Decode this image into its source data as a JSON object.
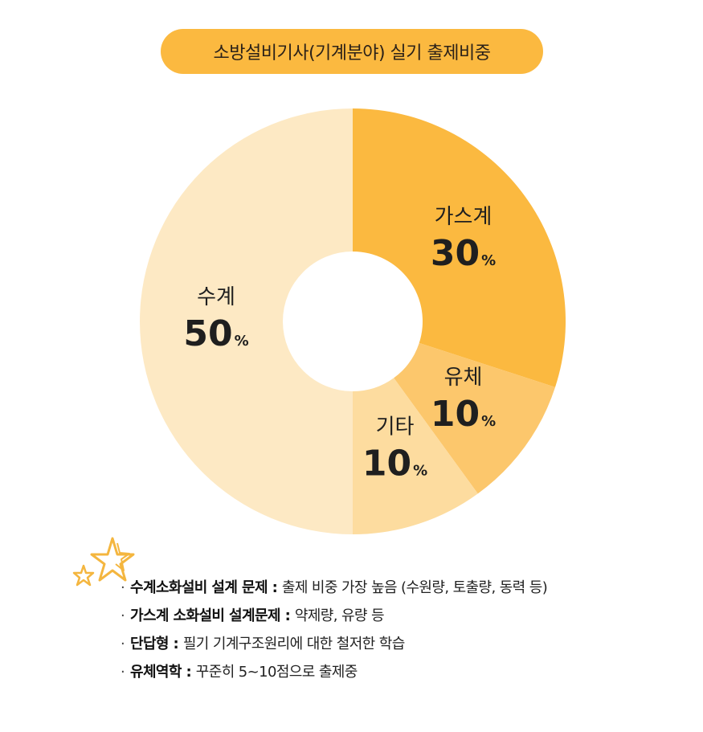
{
  "title": "소방설비기사(기계분야) 실기 출제비중",
  "colors": {
    "accent": "#fbb940",
    "slices": [
      "#fbb940",
      "#fcc76c",
      "#fddc9f",
      "#fde9c4"
    ],
    "stars": "#f4b63f"
  },
  "chart_data": {
    "type": "pie",
    "donut": true,
    "title": "소방설비기사(기계분야) 실기 출제비중",
    "slices": [
      {
        "label": "가스계",
        "value": 30,
        "value_text": "30",
        "unit": "%"
      },
      {
        "label": "유체",
        "value": 10,
        "value_text": "10",
        "unit": "%"
      },
      {
        "label": "기타",
        "value": 10,
        "value_text": "10",
        "unit": "%"
      },
      {
        "label": "수계",
        "value": 50,
        "value_text": "50",
        "unit": "%"
      }
    ]
  },
  "notes": [
    {
      "bullet": "·",
      "keyword": "수계소화설비 설계 문제",
      "sep": " : ",
      "text": "출제 비중 가장 높음 (수원량, 토출량, 동력 등)"
    },
    {
      "bullet": "·",
      "keyword": "가스계 소화설비 설계문제",
      "sep": " : ",
      "text": "약제량, 유량 등"
    },
    {
      "bullet": "·",
      "keyword": "단답형",
      "sep": " : ",
      "text": "필기 기계구조원리에 대한 철저한 학습"
    },
    {
      "bullet": "·",
      "keyword": "유체역학",
      "sep": " : ",
      "text": "꾸준히 5~10점으로 출제중"
    }
  ]
}
